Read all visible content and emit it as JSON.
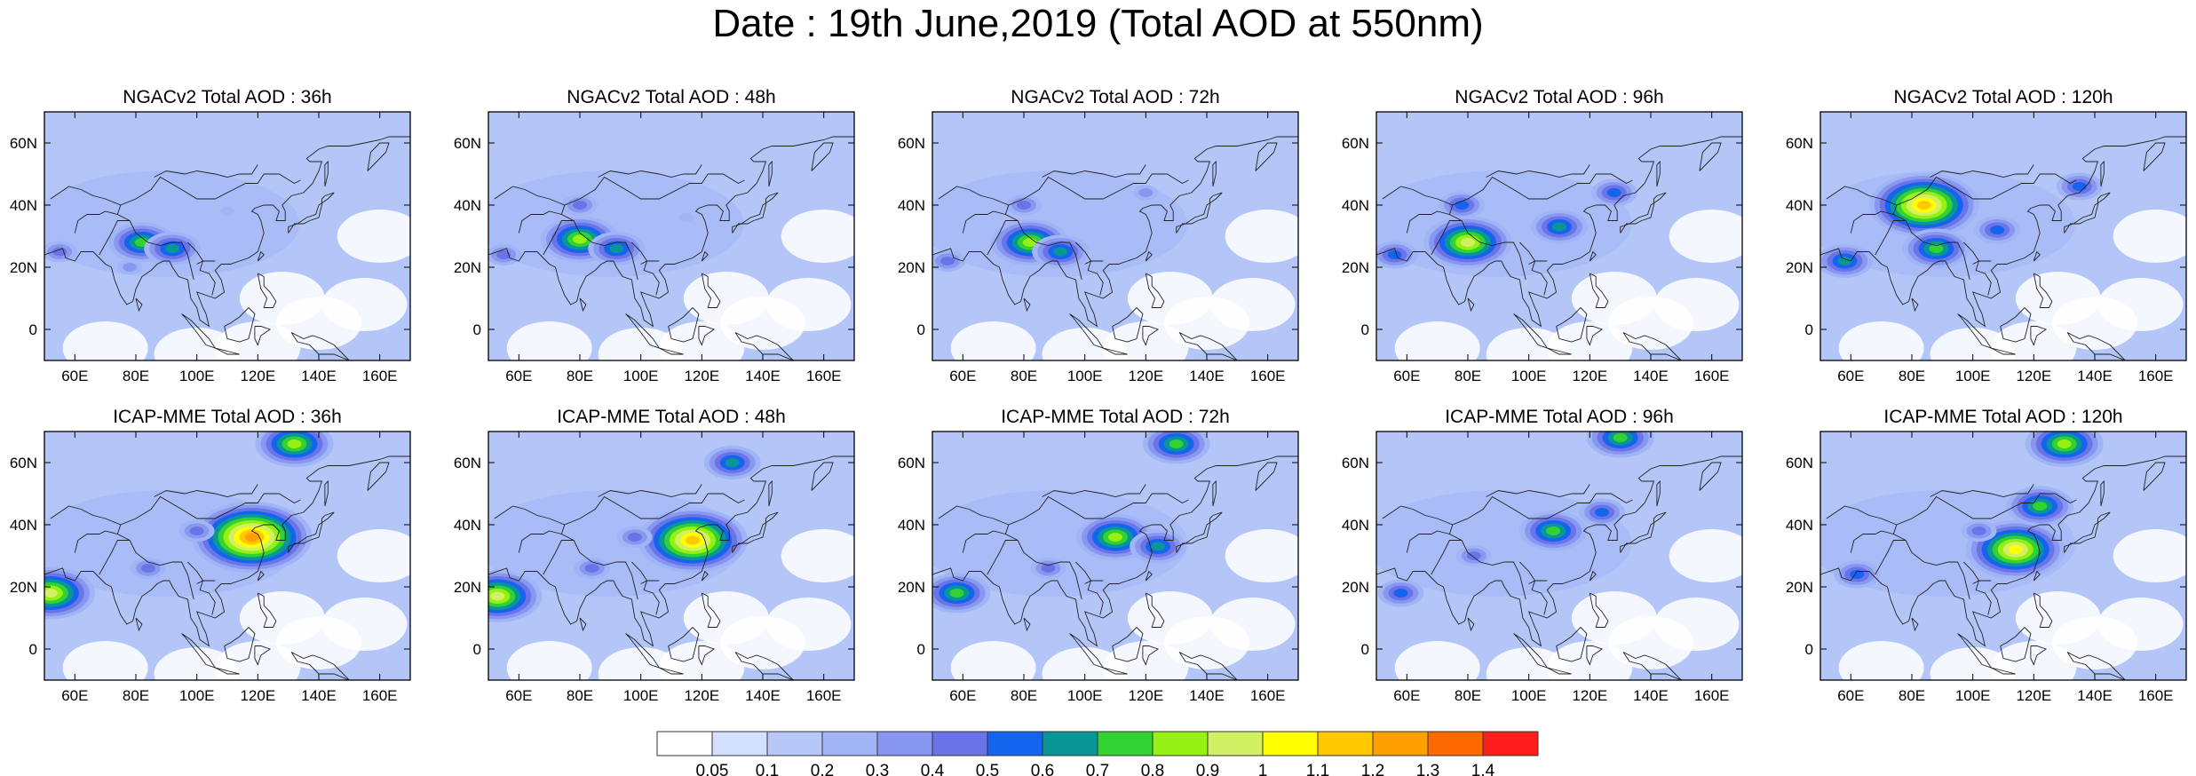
{
  "title": "Date : 19th June,2019 (Total AOD at 550nm)",
  "panels": [
    {
      "title": "NGACv2 Total AOD : 36h",
      "model": "NGACv2",
      "lead": "36h",
      "hotspots": [
        {
          "lon": 55,
          "lat": 25,
          "level": 5
        },
        {
          "lon": 82,
          "lat": 28,
          "level": 8
        },
        {
          "lon": 92,
          "lat": 26,
          "level": 7
        },
        {
          "lon": 78,
          "lat": 20,
          "level": 4
        },
        {
          "lon": 110,
          "lat": 38,
          "level": 3
        }
      ]
    },
    {
      "title": "NGACv2 Total AOD : 48h",
      "model": "NGACv2",
      "lead": "48h",
      "hotspots": [
        {
          "lon": 55,
          "lat": 24,
          "level": 5
        },
        {
          "lon": 80,
          "lat": 29,
          "level": 9
        },
        {
          "lon": 92,
          "lat": 26,
          "level": 7
        },
        {
          "lon": 80,
          "lat": 40,
          "level": 5
        },
        {
          "lon": 115,
          "lat": 36,
          "level": 3
        }
      ]
    },
    {
      "title": "NGACv2 Total AOD : 72h",
      "model": "NGACv2",
      "lead": "72h",
      "hotspots": [
        {
          "lon": 55,
          "lat": 22,
          "level": 5
        },
        {
          "lon": 82,
          "lat": 28,
          "level": 9
        },
        {
          "lon": 92,
          "lat": 25,
          "level": 7
        },
        {
          "lon": 80,
          "lat": 40,
          "level": 5
        },
        {
          "lon": 120,
          "lat": 44,
          "level": 4
        }
      ]
    },
    {
      "title": "NGACv2 Total AOD : 96h",
      "model": "NGACv2",
      "lead": "96h",
      "hotspots": [
        {
          "lon": 56,
          "lat": 24,
          "level": 6
        },
        {
          "lon": 80,
          "lat": 28,
          "level": 10
        },
        {
          "lon": 110,
          "lat": 33,
          "level": 7
        },
        {
          "lon": 78,
          "lat": 40,
          "level": 6
        },
        {
          "lon": 128,
          "lat": 44,
          "level": 6
        }
      ]
    },
    {
      "title": "NGACv2 Total AOD : 120h",
      "model": "NGACv2",
      "lead": "120h",
      "hotspots": [
        {
          "lon": 58,
          "lat": 22,
          "level": 7
        },
        {
          "lon": 84,
          "lat": 40,
          "level": 12
        },
        {
          "lon": 88,
          "lat": 26,
          "level": 8
        },
        {
          "lon": 108,
          "lat": 32,
          "level": 6
        },
        {
          "lon": 135,
          "lat": 46,
          "level": 6
        }
      ]
    },
    {
      "title": "ICAP-MME Total AOD : 36h",
      "model": "ICAP-MME",
      "lead": "36h",
      "hotspots": [
        {
          "lon": 52,
          "lat": 18,
          "level": 10
        },
        {
          "lon": 118,
          "lat": 36,
          "level": 13
        },
        {
          "lon": 84,
          "lat": 26,
          "level": 5
        },
        {
          "lon": 132,
          "lat": 66,
          "level": 9
        },
        {
          "lon": 100,
          "lat": 38,
          "level": 5
        }
      ]
    },
    {
      "title": "ICAP-MME Total AOD : 48h",
      "model": "ICAP-MME",
      "lead": "48h",
      "hotspots": [
        {
          "lon": 53,
          "lat": 17,
          "level": 10
        },
        {
          "lon": 117,
          "lat": 35,
          "level": 12
        },
        {
          "lon": 84,
          "lat": 26,
          "level": 5
        },
        {
          "lon": 130,
          "lat": 60,
          "level": 7
        },
        {
          "lon": 98,
          "lat": 36,
          "level": 5
        }
      ]
    },
    {
      "title": "ICAP-MME Total AOD : 72h",
      "model": "ICAP-MME",
      "lead": "72h",
      "hotspots": [
        {
          "lon": 58,
          "lat": 18,
          "level": 8
        },
        {
          "lon": 110,
          "lat": 36,
          "level": 9
        },
        {
          "lon": 124,
          "lat": 33,
          "level": 7
        },
        {
          "lon": 130,
          "lat": 66,
          "level": 8
        },
        {
          "lon": 88,
          "lat": 26,
          "level": 5
        }
      ]
    },
    {
      "title": "ICAP-MME Total AOD : 96h",
      "model": "ICAP-MME",
      "lead": "96h",
      "hotspots": [
        {
          "lon": 58,
          "lat": 18,
          "level": 6
        },
        {
          "lon": 108,
          "lat": 38,
          "level": 8
        },
        {
          "lon": 130,
          "lat": 68,
          "level": 8
        },
        {
          "lon": 124,
          "lat": 44,
          "level": 6
        },
        {
          "lon": 82,
          "lat": 30,
          "level": 5
        }
      ]
    },
    {
      "title": "ICAP-MME Total AOD : 120h",
      "model": "ICAP-MME",
      "lead": "120h",
      "hotspots": [
        {
          "lon": 114,
          "lat": 32,
          "level": 11
        },
        {
          "lon": 130,
          "lat": 66,
          "level": 9
        },
        {
          "lon": 122,
          "lat": 46,
          "level": 8
        },
        {
          "lon": 62,
          "lat": 24,
          "level": 6
        },
        {
          "lon": 102,
          "lat": 38,
          "level": 5
        }
      ]
    }
  ],
  "axes": {
    "lon_range": [
      50,
      170
    ],
    "lat_range": [
      -10,
      70
    ],
    "lon_ticks": [
      "60E",
      "80E",
      "100E",
      "120E",
      "140E",
      "160E"
    ],
    "lat_ticks": [
      "60N",
      "40N",
      "20N",
      "0"
    ]
  },
  "colorbar": {
    "labels": [
      "0.05",
      "0.1",
      "0.2",
      "0.3",
      "0.4",
      "0.5",
      "0.6",
      "0.7",
      "0.8",
      "0.9",
      "1",
      "1.1",
      "1.2",
      "1.3",
      "1.4"
    ],
    "colors": [
      "#ffffff",
      "#d4e0ff",
      "#b7c8f8",
      "#a0b4f6",
      "#8898f0",
      "#6a74e8",
      "#1464f0",
      "#0a9696",
      "#32d232",
      "#96f014",
      "#d2f064",
      "#ffff00",
      "#ffc800",
      "#ffa000",
      "#ff6a00",
      "#ff1e1e"
    ]
  },
  "map_colors": {
    "background": "#b4c6f8",
    "clean": "#ffffff",
    "coast": "#222222"
  }
}
